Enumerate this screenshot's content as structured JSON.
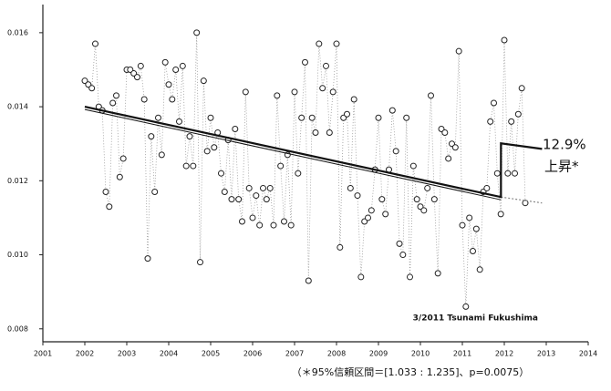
{
  "chart_data": {
    "type": "scatter",
    "annotations": {
      "increase_pct": "12.9%",
      "increase_label": "上昇*",
      "event": "3/2011 Tsunami Fukushima",
      "footnote": "（＊95%信頼区間＝[1.033 : 1.235]、p=0.0075）"
    },
    "xlim": [
      2001,
      2014
    ],
    "xticks": [
      2001,
      2002,
      2003,
      2004,
      2005,
      2006,
      2007,
      2008,
      2009,
      2010,
      2011,
      2012,
      2013,
      2014
    ],
    "ylim": [
      0.00765,
      0.01676
    ],
    "yticks": [
      0.008,
      0.01,
      0.012,
      0.014,
      0.016
    ],
    "yticks_labels": [
      "0.008",
      "0.010",
      "0.012",
      "0.014",
      "0.016"
    ],
    "series": [
      {
        "color": "#222222",
        "x": [
          2002,
          2002.083,
          2002.167,
          2002.25,
          2002.333,
          2002.417,
          2002.5,
          2002.583,
          2002.667,
          2002.75,
          2002.833,
          2002.917,
          2003,
          2003.083,
          2003.167,
          2003.25,
          2003.333,
          2003.417,
          2003.5,
          2003.583,
          2003.667,
          2003.75,
          2003.833,
          2003.917,
          2004,
          2004.083,
          2004.167,
          2004.25,
          2004.333,
          2004.417,
          2004.5,
          2004.583,
          2004.667,
          2004.75,
          2004.833,
          2004.917,
          2005,
          2005.083,
          2005.167,
          2005.25,
          2005.333,
          2005.417,
          2005.5,
          2005.583,
          2005.667,
          2005.75,
          2005.833,
          2005.917,
          2006,
          2006.083,
          2006.167,
          2006.25,
          2006.333,
          2006.417,
          2006.5,
          2006.583,
          2006.667,
          2006.75,
          2006.833,
          2006.917,
          2007,
          2007.083,
          2007.167,
          2007.25,
          2007.333,
          2007.417,
          2007.5,
          2007.583,
          2007.667,
          2007.75,
          2007.833,
          2007.917,
          2008,
          2008.083,
          2008.167,
          2008.25,
          2008.333,
          2008.417,
          2008.5,
          2008.583,
          2008.667,
          2008.75,
          2008.833,
          2008.917,
          2009,
          2009.083,
          2009.167,
          2009.25,
          2009.333,
          2009.417,
          2009.5,
          2009.583,
          2009.667,
          2009.75,
          2009.833,
          2009.917,
          2010,
          2010.083,
          2010.167,
          2010.25,
          2010.333,
          2010.417,
          2010.5,
          2010.583,
          2010.667,
          2010.75,
          2010.833,
          2010.917,
          2011,
          2011.083,
          2011.167,
          2011.25,
          2011.333,
          2011.417,
          2011.5,
          2011.583,
          2011.667,
          2011.75,
          2011.833,
          2011.917,
          2012,
          2012.083,
          2012.167,
          2012.25,
          2012.333,
          2012.417,
          2012.5
        ],
        "values": [
          0.0147,
          0.0146,
          0.0145,
          0.0157,
          0.014,
          0.0139,
          0.0117,
          0.0113,
          0.0141,
          0.0143,
          0.0121,
          0.0126,
          0.015,
          0.015,
          0.0149,
          0.0148,
          0.0151,
          0.0142,
          0.0099,
          0.0132,
          0.0117,
          0.0137,
          0.0127,
          0.0152,
          0.0146,
          0.0142,
          0.015,
          0.0136,
          0.0151,
          0.0124,
          0.0132,
          0.0124,
          0.016,
          0.0098,
          0.0147,
          0.0128,
          0.0137,
          0.0129,
          0.0133,
          0.0122,
          0.0117,
          0.0131,
          0.0115,
          0.0134,
          0.0115,
          0.0109,
          0.0144,
          0.0118,
          0.011,
          0.0116,
          0.0108,
          0.0118,
          0.0115,
          0.0118,
          0.0108,
          0.0143,
          0.0124,
          0.0109,
          0.0127,
          0.0108,
          0.0144,
          0.0122,
          0.0137,
          0.0152,
          0.0093,
          0.0137,
          0.0133,
          0.0157,
          0.0145,
          0.0151,
          0.0133,
          0.0144,
          0.0157,
          0.0102,
          0.0137,
          0.0138,
          0.0118,
          0.0142,
          0.0116,
          0.0094,
          0.0109,
          0.011,
          0.0112,
          0.0123,
          0.0137,
          0.0115,
          0.0111,
          0.0123,
          0.0139,
          0.0128,
          0.0103,
          0.01,
          0.0137,
          0.0094,
          0.0124,
          0.0115,
          0.0113,
          0.0112,
          0.0118,
          0.0143,
          0.0115,
          0.0095,
          0.0134,
          0.0133,
          0.0126,
          0.013,
          0.0129,
          0.0155,
          0.0108,
          0.0086,
          0.011,
          0.0101,
          0.0107,
          0.0096,
          0.0117,
          0.0118,
          0.0136,
          0.0141,
          0.0122,
          0.0111,
          0.0158,
          0.0122,
          0.0136,
          0.0122,
          0.0138,
          0.0145,
          0.0114
        ]
      }
    ],
    "trend": {
      "color": "#111111",
      "x": [
        2002,
        2011.92,
        2011.92,
        2012.9
      ],
      "values": [
        0.014,
        0.01156,
        0.01301,
        0.01286
      ]
    },
    "counterfactual": {
      "color": "#888888",
      "x": [
        2011.92,
        2012.9
      ],
      "values": [
        0.01156,
        0.0114
      ]
    }
  }
}
